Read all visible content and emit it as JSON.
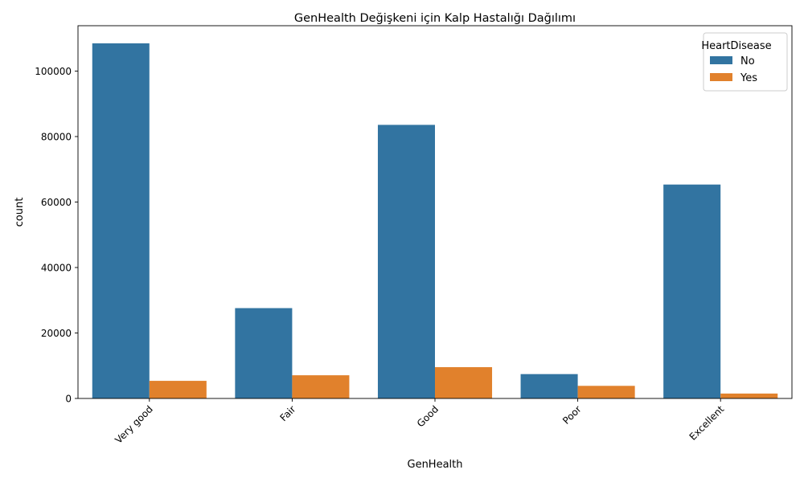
{
  "chart_data": {
    "type": "bar",
    "title": "GenHealth Değişkeni için Kalp Hastalığı Dağılımı",
    "xlabel": "GenHealth",
    "ylabel": "count",
    "categories": [
      "Very good",
      "Fair",
      "Good",
      "Poor",
      "Excellent"
    ],
    "series": [
      {
        "name": "No",
        "color": "#3274a1",
        "values": [
          108477,
          27593,
          83571,
          7439,
          65342
        ]
      },
      {
        "name": "Yes",
        "color": "#e1812c",
        "values": [
          5381,
          7084,
          9558,
          3850,
          1500
        ]
      }
    ],
    "ylim": [
      0,
      113858
    ],
    "yticks": [
      0,
      20000,
      40000,
      60000,
      80000,
      100000
    ],
    "legend": {
      "title": "HeartDisease",
      "position": "top-right"
    },
    "grid": false
  }
}
